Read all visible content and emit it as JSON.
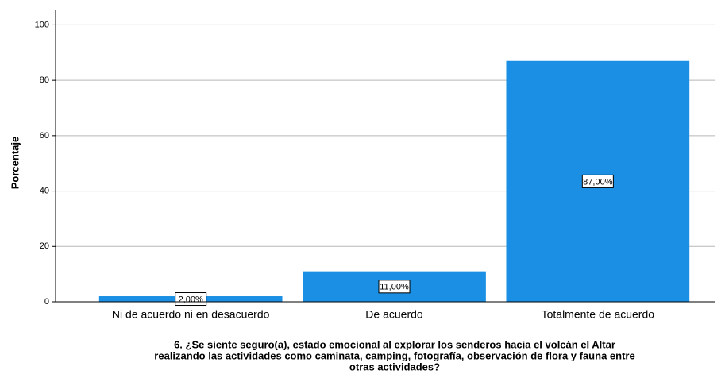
{
  "chart_data": {
    "type": "bar",
    "categories": [
      "Ni de acuerdo ni en desacuerdo",
      "De acuerdo",
      "Totalmente de acuerdo"
    ],
    "values": [
      2,
      11,
      87
    ],
    "value_labels": [
      "2,00%",
      "11,00%",
      "87,00%"
    ],
    "color": "#1a8fe3",
    "ylabel": "Porcentaje",
    "xlabel": [
      "6. ¿Se siente seguro(a), estado emocional al explorar los senderos hacia el volcán el Altar",
      "realizando las actividades como caminata, camping, fotografía, observación de flora y fauna entre",
      "otras actividades?"
    ],
    "ylim": [
      0,
      105
    ],
    "yticks": [
      0,
      20,
      40,
      60,
      80,
      100
    ],
    "grid": true
  }
}
